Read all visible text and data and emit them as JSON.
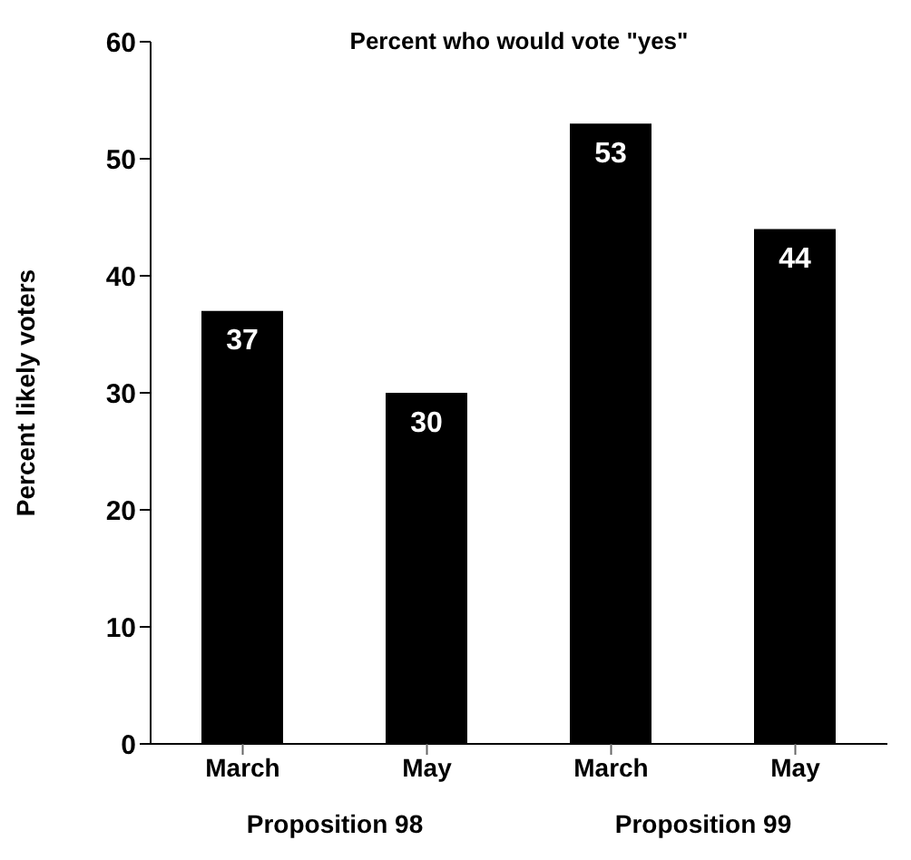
{
  "chart_data": {
    "type": "bar",
    "title": "Percent who would vote \"yes\"",
    "ylabel": "Percent likely voters",
    "categories": [
      "March",
      "May",
      "March",
      "May"
    ],
    "values": [
      37,
      30,
      53,
      44
    ],
    "color": "#000000",
    "ylim": [
      0,
      60
    ],
    "yticks": [
      0,
      10,
      20,
      30,
      40,
      50,
      60
    ],
    "data_labels": true,
    "annotations": [
      "Proposition 98",
      "Proposition 99"
    ]
  }
}
